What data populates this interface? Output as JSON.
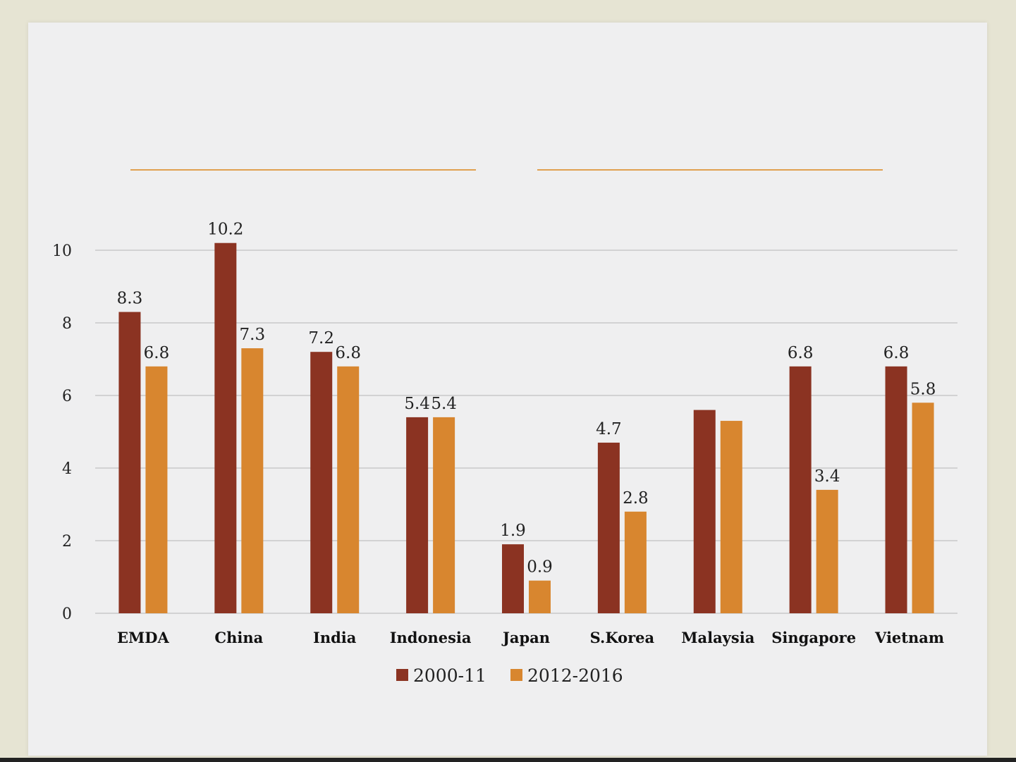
{
  "colors": {
    "series1": "#8b3322",
    "series2": "#d8862f",
    "grid": "#c9c9c9",
    "accent": "#e0a050"
  },
  "chart_data": {
    "type": "bar",
    "title": "",
    "xlabel": "",
    "ylabel": "",
    "ylim": [
      0,
      10
    ],
    "yticks": [
      0,
      2,
      4,
      6,
      8,
      10
    ],
    "grid": true,
    "legend_position": "bottom",
    "categories": [
      "EMDA",
      "China",
      "India",
      "Indonesia",
      "Japan",
      "S.Korea",
      "Malaysia",
      "Singapore",
      "Vietnam"
    ],
    "series": [
      {
        "name": "2000-11",
        "values": [
          8.3,
          10.2,
          7.2,
          5.4,
          1.9,
          4.7,
          5.6,
          6.8,
          6.8
        ],
        "labels": [
          "8.3",
          "10.2",
          "7.2",
          "5.4",
          "1.9",
          "4.7",
          "",
          "6.8",
          "6.8"
        ]
      },
      {
        "name": "2012-2016",
        "values": [
          6.8,
          7.3,
          6.8,
          5.4,
          0.9,
          2.8,
          5.3,
          3.4,
          5.8
        ],
        "labels": [
          "6.8",
          "7.3",
          "6.8",
          "5.4",
          "0.9",
          "2.8",
          "",
          "3.4",
          "5.8"
        ]
      }
    ]
  }
}
